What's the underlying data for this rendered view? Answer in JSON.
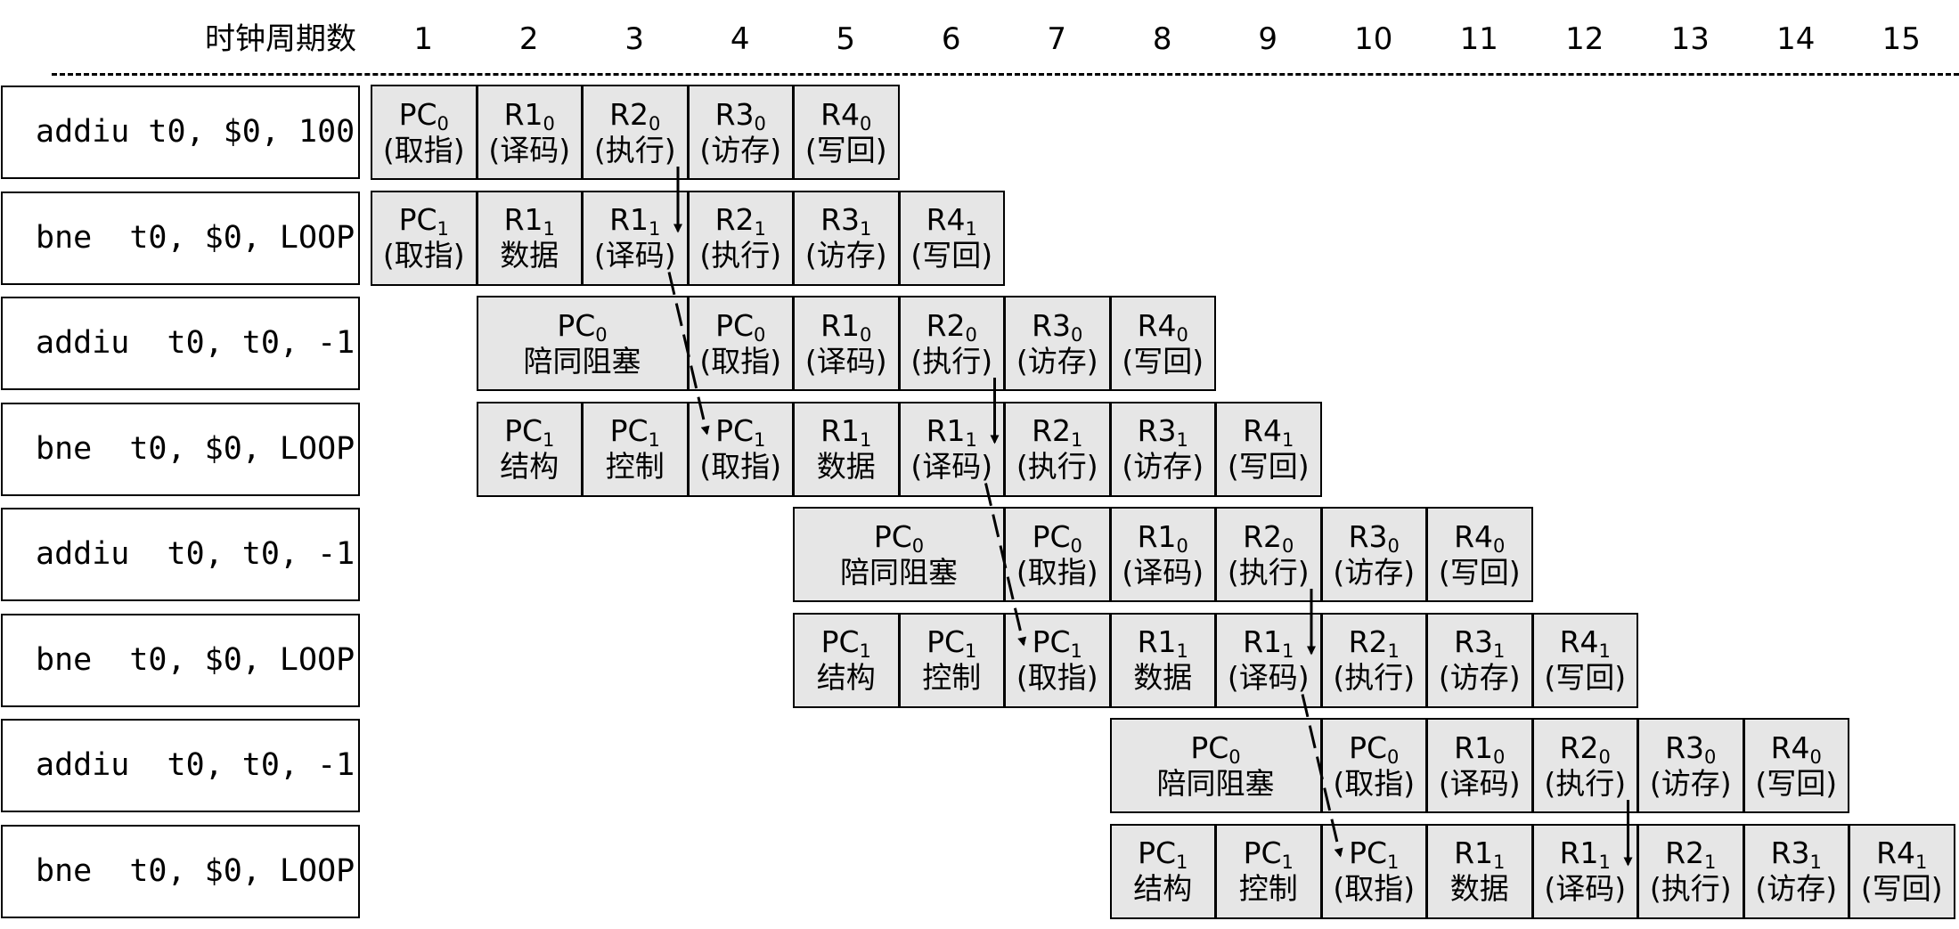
{
  "header": {
    "title": "时钟周期数",
    "cycles": [
      "1",
      "2",
      "3",
      "4",
      "5",
      "6",
      "7",
      "8",
      "9",
      "10",
      "11",
      "12",
      "13",
      "14",
      "15"
    ]
  },
  "instructions": [
    "addiu t0, $0, 100",
    "bne  t0, $0, LOOP",
    "addiu  t0, t0, -1",
    "bne  t0, $0, LOOP",
    "addiu  t0, t0, -1",
    "bne  t0, $0, LOOP",
    "addiu  t0, t0, -1",
    "bne  t0, $0, LOOP"
  ],
  "pipeline": [
    [
      {
        "cycle": 1,
        "span": 1,
        "reg": "PC",
        "sub": "0",
        "label": "(取指)"
      },
      {
        "cycle": 2,
        "span": 1,
        "reg": "R1",
        "sub": "0",
        "label": "(译码)"
      },
      {
        "cycle": 3,
        "span": 1,
        "reg": "R2",
        "sub": "0",
        "label": "(执行)"
      },
      {
        "cycle": 4,
        "span": 1,
        "reg": "R3",
        "sub": "0",
        "label": "(访存)"
      },
      {
        "cycle": 5,
        "span": 1,
        "reg": "R4",
        "sub": "0",
        "label": "(写回)"
      }
    ],
    [
      {
        "cycle": 1,
        "span": 1,
        "reg": "PC",
        "sub": "1",
        "label": "(取指)"
      },
      {
        "cycle": 2,
        "span": 1,
        "reg": "R1",
        "sub": "1",
        "label": "数据"
      },
      {
        "cycle": 3,
        "span": 1,
        "reg": "R1",
        "sub": "1",
        "label": "(译码)"
      },
      {
        "cycle": 4,
        "span": 1,
        "reg": "R2",
        "sub": "1",
        "label": "(执行)"
      },
      {
        "cycle": 5,
        "span": 1,
        "reg": "R3",
        "sub": "1",
        "label": "(访存)"
      },
      {
        "cycle": 6,
        "span": 1,
        "reg": "R4",
        "sub": "1",
        "label": "(写回)"
      }
    ],
    [
      {
        "cycle": 2,
        "span": 2,
        "reg": "PC",
        "sub": "0",
        "label": "陪同阻塞"
      },
      {
        "cycle": 4,
        "span": 1,
        "reg": "PC",
        "sub": "0",
        "label": "(取指)"
      },
      {
        "cycle": 5,
        "span": 1,
        "reg": "R1",
        "sub": "0",
        "label": "(译码)"
      },
      {
        "cycle": 6,
        "span": 1,
        "reg": "R2",
        "sub": "0",
        "label": "(执行)"
      },
      {
        "cycle": 7,
        "span": 1,
        "reg": "R3",
        "sub": "0",
        "label": "(访存)"
      },
      {
        "cycle": 8,
        "span": 1,
        "reg": "R4",
        "sub": "0",
        "label": "(写回)"
      }
    ],
    [
      {
        "cycle": 2,
        "span": 1,
        "reg": "PC",
        "sub": "1",
        "label": "结构"
      },
      {
        "cycle": 3,
        "span": 1,
        "reg": "PC",
        "sub": "1",
        "label": "控制"
      },
      {
        "cycle": 4,
        "span": 1,
        "reg": "PC",
        "sub": "1",
        "label": "(取指)"
      },
      {
        "cycle": 5,
        "span": 1,
        "reg": "R1",
        "sub": "1",
        "label": "数据"
      },
      {
        "cycle": 6,
        "span": 1,
        "reg": "R1",
        "sub": "1",
        "label": "(译码)"
      },
      {
        "cycle": 7,
        "span": 1,
        "reg": "R2",
        "sub": "1",
        "label": "(执行)"
      },
      {
        "cycle": 8,
        "span": 1,
        "reg": "R3",
        "sub": "1",
        "label": "(访存)"
      },
      {
        "cycle": 9,
        "span": 1,
        "reg": "R4",
        "sub": "1",
        "label": "(写回)"
      }
    ],
    [
      {
        "cycle": 5,
        "span": 2,
        "reg": "PC",
        "sub": "0",
        "label": "陪同阻塞"
      },
      {
        "cycle": 7,
        "span": 1,
        "reg": "PC",
        "sub": "0",
        "label": "(取指)"
      },
      {
        "cycle": 8,
        "span": 1,
        "reg": "R1",
        "sub": "0",
        "label": "(译码)"
      },
      {
        "cycle": 9,
        "span": 1,
        "reg": "R2",
        "sub": "0",
        "label": "(执行)"
      },
      {
        "cycle": 10,
        "span": 1,
        "reg": "R3",
        "sub": "0",
        "label": "(访存)"
      },
      {
        "cycle": 11,
        "span": 1,
        "reg": "R4",
        "sub": "0",
        "label": "(写回)"
      }
    ],
    [
      {
        "cycle": 5,
        "span": 1,
        "reg": "PC",
        "sub": "1",
        "label": "结构"
      },
      {
        "cycle": 6,
        "span": 1,
        "reg": "PC",
        "sub": "1",
        "label": "控制"
      },
      {
        "cycle": 7,
        "span": 1,
        "reg": "PC",
        "sub": "1",
        "label": "(取指)"
      },
      {
        "cycle": 8,
        "span": 1,
        "reg": "R1",
        "sub": "1",
        "label": "数据"
      },
      {
        "cycle": 9,
        "span": 1,
        "reg": "R1",
        "sub": "1",
        "label": "(译码)"
      },
      {
        "cycle": 10,
        "span": 1,
        "reg": "R2",
        "sub": "1",
        "label": "(执行)"
      },
      {
        "cycle": 11,
        "span": 1,
        "reg": "R3",
        "sub": "1",
        "label": "(访存)"
      },
      {
        "cycle": 12,
        "span": 1,
        "reg": "R4",
        "sub": "1",
        "label": "(写回)"
      }
    ],
    [
      {
        "cycle": 8,
        "span": 2,
        "reg": "PC",
        "sub": "0",
        "label": "陪同阻塞"
      },
      {
        "cycle": 10,
        "span": 1,
        "reg": "PC",
        "sub": "0",
        "label": "(取指)"
      },
      {
        "cycle": 11,
        "span": 1,
        "reg": "R1",
        "sub": "0",
        "label": "(译码)"
      },
      {
        "cycle": 12,
        "span": 1,
        "reg": "R2",
        "sub": "0",
        "label": "(执行)"
      },
      {
        "cycle": 13,
        "span": 1,
        "reg": "R3",
        "sub": "0",
        "label": "(访存)"
      },
      {
        "cycle": 14,
        "span": 1,
        "reg": "R4",
        "sub": "0",
        "label": "(写回)"
      }
    ],
    [
      {
        "cycle": 8,
        "span": 1,
        "reg": "PC",
        "sub": "1",
        "label": "结构"
      },
      {
        "cycle": 9,
        "span": 1,
        "reg": "PC",
        "sub": "1",
        "label": "控制"
      },
      {
        "cycle": 10,
        "span": 1,
        "reg": "PC",
        "sub": "1",
        "label": "(取指)"
      },
      {
        "cycle": 11,
        "span": 1,
        "reg": "R1",
        "sub": "1",
        "label": "数据"
      },
      {
        "cycle": 12,
        "span": 1,
        "reg": "R1",
        "sub": "1",
        "label": "(译码)"
      },
      {
        "cycle": 13,
        "span": 1,
        "reg": "R2",
        "sub": "1",
        "label": "(执行)"
      },
      {
        "cycle": 14,
        "span": 1,
        "reg": "R3",
        "sub": "1",
        "label": "(访存)"
      },
      {
        "cycle": 15,
        "span": 1,
        "reg": "R4",
        "sub": "1",
        "label": "(写回)"
      }
    ]
  ],
  "arrows": [
    {
      "from_row": 0,
      "from_cycle": 3,
      "to_row": 1,
      "to_cycle": 3,
      "style": "solid"
    },
    {
      "from_row": 1,
      "from_cycle": 3,
      "to_row": 3,
      "to_cycle": 4,
      "style": "dashed"
    },
    {
      "from_row": 2,
      "from_cycle": 6,
      "to_row": 3,
      "to_cycle": 6,
      "style": "solid"
    },
    {
      "from_row": 3,
      "from_cycle": 6,
      "to_row": 5,
      "to_cycle": 7,
      "style": "dashed"
    },
    {
      "from_row": 4,
      "from_cycle": 9,
      "to_row": 5,
      "to_cycle": 9,
      "style": "solid"
    },
    {
      "from_row": 5,
      "from_cycle": 9,
      "to_row": 7,
      "to_cycle": 10,
      "style": "dashed"
    },
    {
      "from_row": 6,
      "from_cycle": 12,
      "to_row": 7,
      "to_cycle": 12,
      "style": "solid"
    }
  ]
}
